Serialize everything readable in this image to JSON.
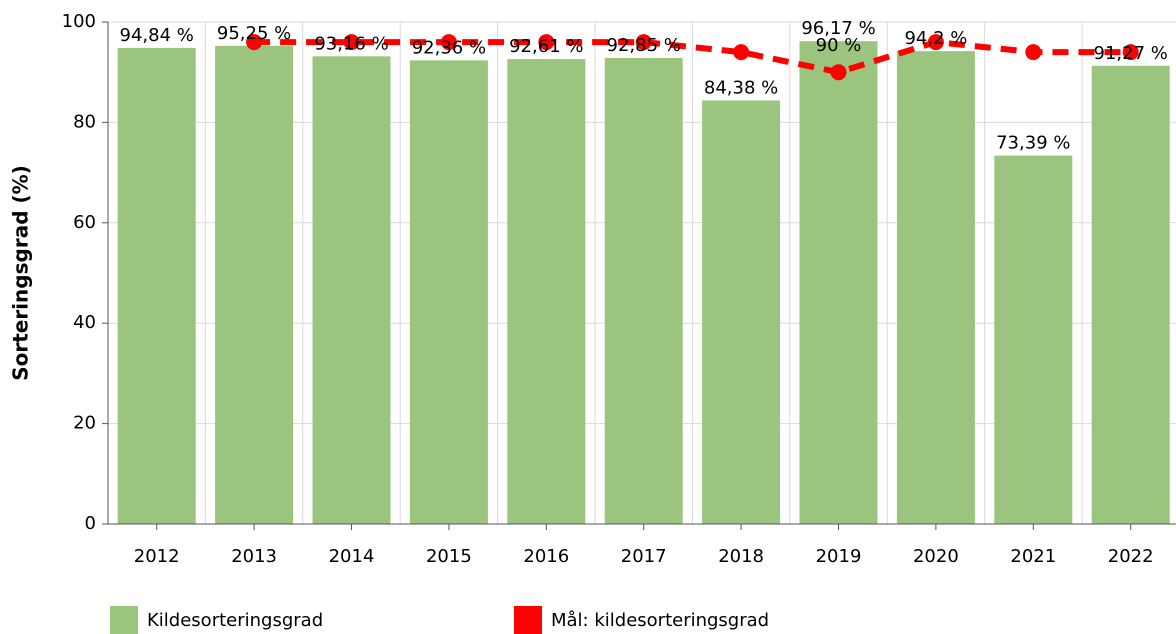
{
  "chart_data": {
    "type": "bar_line",
    "ylabel": "Sorteringsgrad (%)",
    "categories": [
      "2012",
      "2013",
      "2014",
      "2015",
      "2016",
      "2017",
      "2018",
      "2019",
      "2020",
      "2021",
      "2022"
    ],
    "series": [
      {
        "name": "Kildesorteringsgrad",
        "color": "#9bc57f",
        "type": "bar",
        "values": [
          94.84,
          95.25,
          93.16,
          92.36,
          92.61,
          92.85,
          84.38,
          96.17,
          94.2,
          73.39,
          91.27
        ],
        "value_labels": [
          "94,84 %",
          "95,25 %",
          "93,16 %",
          "92,36 %",
          "92,61 %",
          "92,85 %",
          "84,38 %",
          "96,17 %",
          "94,2 %",
          "73,39 %",
          "91,27 %"
        ]
      },
      {
        "name": "Mål: kildesorteringsgrad",
        "color": "#ff0000",
        "type": "line",
        "values": [
          null,
          96,
          96,
          96,
          96,
          96,
          94,
          90,
          96,
          94,
          94
        ],
        "value_labels": [
          null,
          null,
          null,
          null,
          null,
          null,
          null,
          "90 %",
          null,
          null,
          null
        ]
      }
    ],
    "ylim": [
      0,
      100
    ],
    "yticks": [
      0,
      20,
      40,
      60,
      80,
      100
    ],
    "grid": true
  }
}
